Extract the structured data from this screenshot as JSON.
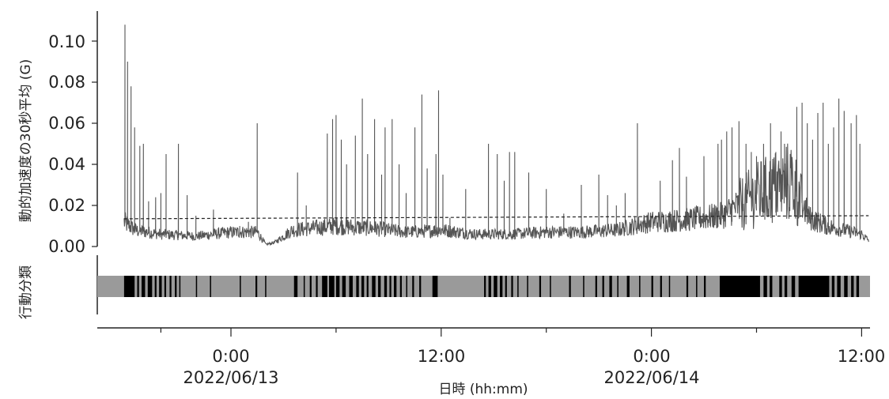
{
  "chart_data": [
    {
      "type": "line",
      "title": "",
      "ylabel": "動的加速度の30秒平均 (G)",
      "ylim": [
        0,
        0.12
      ],
      "yticks": [
        0.0,
        0.02,
        0.04,
        0.06,
        0.08,
        0.1
      ],
      "ytick_labels": [
        "0.00",
        "0.02",
        "0.04",
        "0.06",
        "0.08",
        "0.10"
      ],
      "x_domain_hours": [
        -6.1,
        36.4
      ],
      "threshold": {
        "style": "dashed",
        "y_start": 0.0135,
        "y_end": 0.015
      },
      "line_color": "#555555",
      "series": [
        {
          "anchors": [
            [
              -6.1,
              0.012
            ],
            [
              -5.5,
              0.008
            ],
            [
              -4.0,
              0.006
            ],
            [
              -2.0,
              0.005
            ],
            [
              0.0,
              0.007
            ],
            [
              1.5,
              0.007
            ],
            [
              2.0,
              0.001
            ],
            [
              2.5,
              0.002
            ],
            [
              3.5,
              0.008
            ],
            [
              6.0,
              0.01
            ],
            [
              8.0,
              0.009
            ],
            [
              10.0,
              0.007
            ],
            [
              12.0,
              0.008
            ],
            [
              14.0,
              0.006
            ],
            [
              16.0,
              0.006
            ],
            [
              18.0,
              0.007
            ],
            [
              20.0,
              0.007
            ],
            [
              22.0,
              0.008
            ],
            [
              24.0,
              0.012
            ],
            [
              26.0,
              0.013
            ],
            [
              28.0,
              0.015
            ],
            [
              30.0,
              0.025
            ],
            [
              32.0,
              0.032
            ],
            [
              33.0,
              0.014
            ],
            [
              34.0,
              0.01
            ],
            [
              36.0,
              0.006
            ],
            [
              36.4,
              0.003
            ]
          ],
          "spikes": [
            [
              -6.05,
              0.108
            ],
            [
              -5.9,
              0.09
            ],
            [
              -5.7,
              0.078
            ],
            [
              -5.5,
              0.058
            ],
            [
              -5.2,
              0.049
            ],
            [
              -5.0,
              0.05
            ],
            [
              -4.7,
              0.022
            ],
            [
              -4.3,
              0.024
            ],
            [
              -4.0,
              0.026
            ],
            [
              -3.7,
              0.045
            ],
            [
              -3.0,
              0.05
            ],
            [
              -2.5,
              0.025
            ],
            [
              -2.0,
              0.015
            ],
            [
              -1.0,
              0.018
            ],
            [
              0.5,
              0.01
            ],
            [
              1.0,
              0.012
            ],
            [
              1.5,
              0.06
            ],
            [
              3.8,
              0.036
            ],
            [
              4.3,
              0.02
            ],
            [
              5.5,
              0.055
            ],
            [
              5.8,
              0.062
            ],
            [
              6.0,
              0.064
            ],
            [
              6.3,
              0.052
            ],
            [
              6.6,
              0.04
            ],
            [
              7.1,
              0.054
            ],
            [
              7.5,
              0.072
            ],
            [
              7.8,
              0.045
            ],
            [
              8.2,
              0.062
            ],
            [
              8.6,
              0.035
            ],
            [
              8.8,
              0.058
            ],
            [
              9.2,
              0.062
            ],
            [
              9.6,
              0.04
            ],
            [
              10.0,
              0.026
            ],
            [
              10.5,
              0.058
            ],
            [
              10.9,
              0.074
            ],
            [
              11.2,
              0.038
            ],
            [
              11.7,
              0.045
            ],
            [
              11.85,
              0.076
            ],
            [
              12.1,
              0.035
            ],
            [
              12.5,
              0.014
            ],
            [
              13.4,
              0.028
            ],
            [
              14.7,
              0.05
            ],
            [
              15.2,
              0.045
            ],
            [
              15.6,
              0.032
            ],
            [
              15.9,
              0.046
            ],
            [
              16.2,
              0.046
            ],
            [
              17.0,
              0.036
            ],
            [
              18.0,
              0.028
            ],
            [
              19.0,
              0.016
            ],
            [
              20.0,
              0.03
            ],
            [
              21.0,
              0.035
            ],
            [
              21.5,
              0.025
            ],
            [
              22.0,
              0.02
            ],
            [
              22.5,
              0.026
            ],
            [
              23.2,
              0.06
            ],
            [
              24.5,
              0.032
            ],
            [
              25.2,
              0.042
            ],
            [
              25.6,
              0.048
            ],
            [
              26.0,
              0.034
            ],
            [
              27.0,
              0.044
            ],
            [
              27.8,
              0.05
            ],
            [
              28.0,
              0.052
            ],
            [
              28.3,
              0.056
            ],
            [
              28.6,
              0.058
            ],
            [
              29.0,
              0.061
            ],
            [
              29.4,
              0.05
            ],
            [
              29.7,
              0.046
            ],
            [
              30.0,
              0.044
            ],
            [
              30.4,
              0.05
            ],
            [
              30.8,
              0.06
            ],
            [
              31.1,
              0.046
            ],
            [
              31.4,
              0.056
            ],
            [
              31.6,
              0.05
            ],
            [
              32.0,
              0.034
            ],
            [
              32.3,
              0.068
            ],
            [
              32.6,
              0.07
            ],
            [
              32.9,
              0.06
            ],
            [
              33.2,
              0.052
            ],
            [
              33.5,
              0.065
            ],
            [
              33.8,
              0.07
            ],
            [
              34.1,
              0.05
            ],
            [
              34.4,
              0.058
            ],
            [
              34.7,
              0.072
            ],
            [
              35.0,
              0.066
            ],
            [
              35.4,
              0.06
            ],
            [
              35.7,
              0.064
            ],
            [
              35.9,
              0.05
            ]
          ]
        }
      ]
    },
    {
      "type": "heatmap",
      "ylabel": "行動分類",
      "colors": {
        "active": "#000000",
        "rest": "#9a9a9a"
      },
      "active_intervals": [
        [
          -6.1,
          -5.5
        ],
        [
          -5.35,
          -5.25
        ],
        [
          -5.1,
          -4.9
        ],
        [
          -4.75,
          -4.5
        ],
        [
          -4.35,
          -4.25
        ],
        [
          -4.1,
          -3.95
        ],
        [
          -3.8,
          -3.7
        ],
        [
          -3.5,
          -3.4
        ],
        [
          -3.2,
          -3.1
        ],
        [
          -2.95,
          -2.9
        ],
        [
          -2.0,
          -1.95
        ],
        [
          -1.2,
          -1.15
        ],
        [
          0.5,
          0.55
        ],
        [
          1.4,
          1.5
        ],
        [
          1.95,
          2.0
        ],
        [
          3.6,
          3.8
        ],
        [
          4.15,
          4.2
        ],
        [
          4.5,
          4.6
        ],
        [
          4.85,
          4.95
        ],
        [
          5.2,
          5.5
        ],
        [
          5.6,
          5.9
        ],
        [
          6.0,
          6.2
        ],
        [
          6.35,
          6.55
        ],
        [
          6.75,
          6.95
        ],
        [
          7.15,
          7.3
        ],
        [
          7.45,
          7.6
        ],
        [
          7.75,
          7.85
        ],
        [
          8.05,
          8.25
        ],
        [
          8.4,
          8.55
        ],
        [
          8.75,
          8.9
        ],
        [
          9.05,
          9.15
        ],
        [
          9.3,
          9.45
        ],
        [
          9.65,
          9.75
        ],
        [
          10.0,
          10.05
        ],
        [
          10.35,
          10.45
        ],
        [
          10.75,
          10.85
        ],
        [
          11.5,
          11.8
        ],
        [
          14.45,
          14.55
        ],
        [
          14.7,
          14.85
        ],
        [
          15.0,
          15.2
        ],
        [
          15.35,
          15.5
        ],
        [
          15.65,
          15.75
        ],
        [
          16.0,
          16.1
        ],
        [
          16.35,
          16.4
        ],
        [
          16.9,
          16.95
        ],
        [
          17.6,
          17.7
        ],
        [
          18.2,
          18.25
        ],
        [
          19.3,
          19.4
        ],
        [
          20.1,
          20.15
        ],
        [
          20.8,
          20.9
        ],
        [
          21.2,
          21.3
        ],
        [
          21.6,
          21.75
        ],
        [
          22.05,
          22.1
        ],
        [
          22.6,
          22.75
        ],
        [
          23.3,
          23.35
        ],
        [
          24.0,
          24.1
        ],
        [
          24.5,
          24.6
        ],
        [
          25.0,
          25.05
        ],
        [
          26.0,
          26.1
        ],
        [
          26.55,
          26.6
        ],
        [
          27.0,
          27.1
        ],
        [
          27.9,
          30.2
        ],
        [
          30.4,
          30.6
        ],
        [
          30.75,
          30.9
        ],
        [
          31.3,
          31.45
        ],
        [
          31.6,
          31.75
        ],
        [
          32.0,
          32.2
        ],
        [
          32.4,
          34.15
        ],
        [
          34.3,
          34.45
        ],
        [
          34.6,
          34.8
        ],
        [
          35.0,
          35.2
        ],
        [
          35.4,
          35.55
        ],
        [
          35.7,
          35.85
        ]
      ]
    }
  ],
  "xaxis": {
    "xlabel": "日時 (hh:mm)",
    "major_ticks": [
      0,
      12,
      24,
      36
    ],
    "tick_labels": [
      "0:00",
      "12:00",
      "0:00",
      "12:00"
    ],
    "minor_ticks": [
      -4,
      6,
      18,
      30
    ],
    "date_labels": [
      {
        "hour": 0,
        "text": "2022/06/13"
      },
      {
        "hour": 24,
        "text": "2022/06/14"
      }
    ]
  }
}
